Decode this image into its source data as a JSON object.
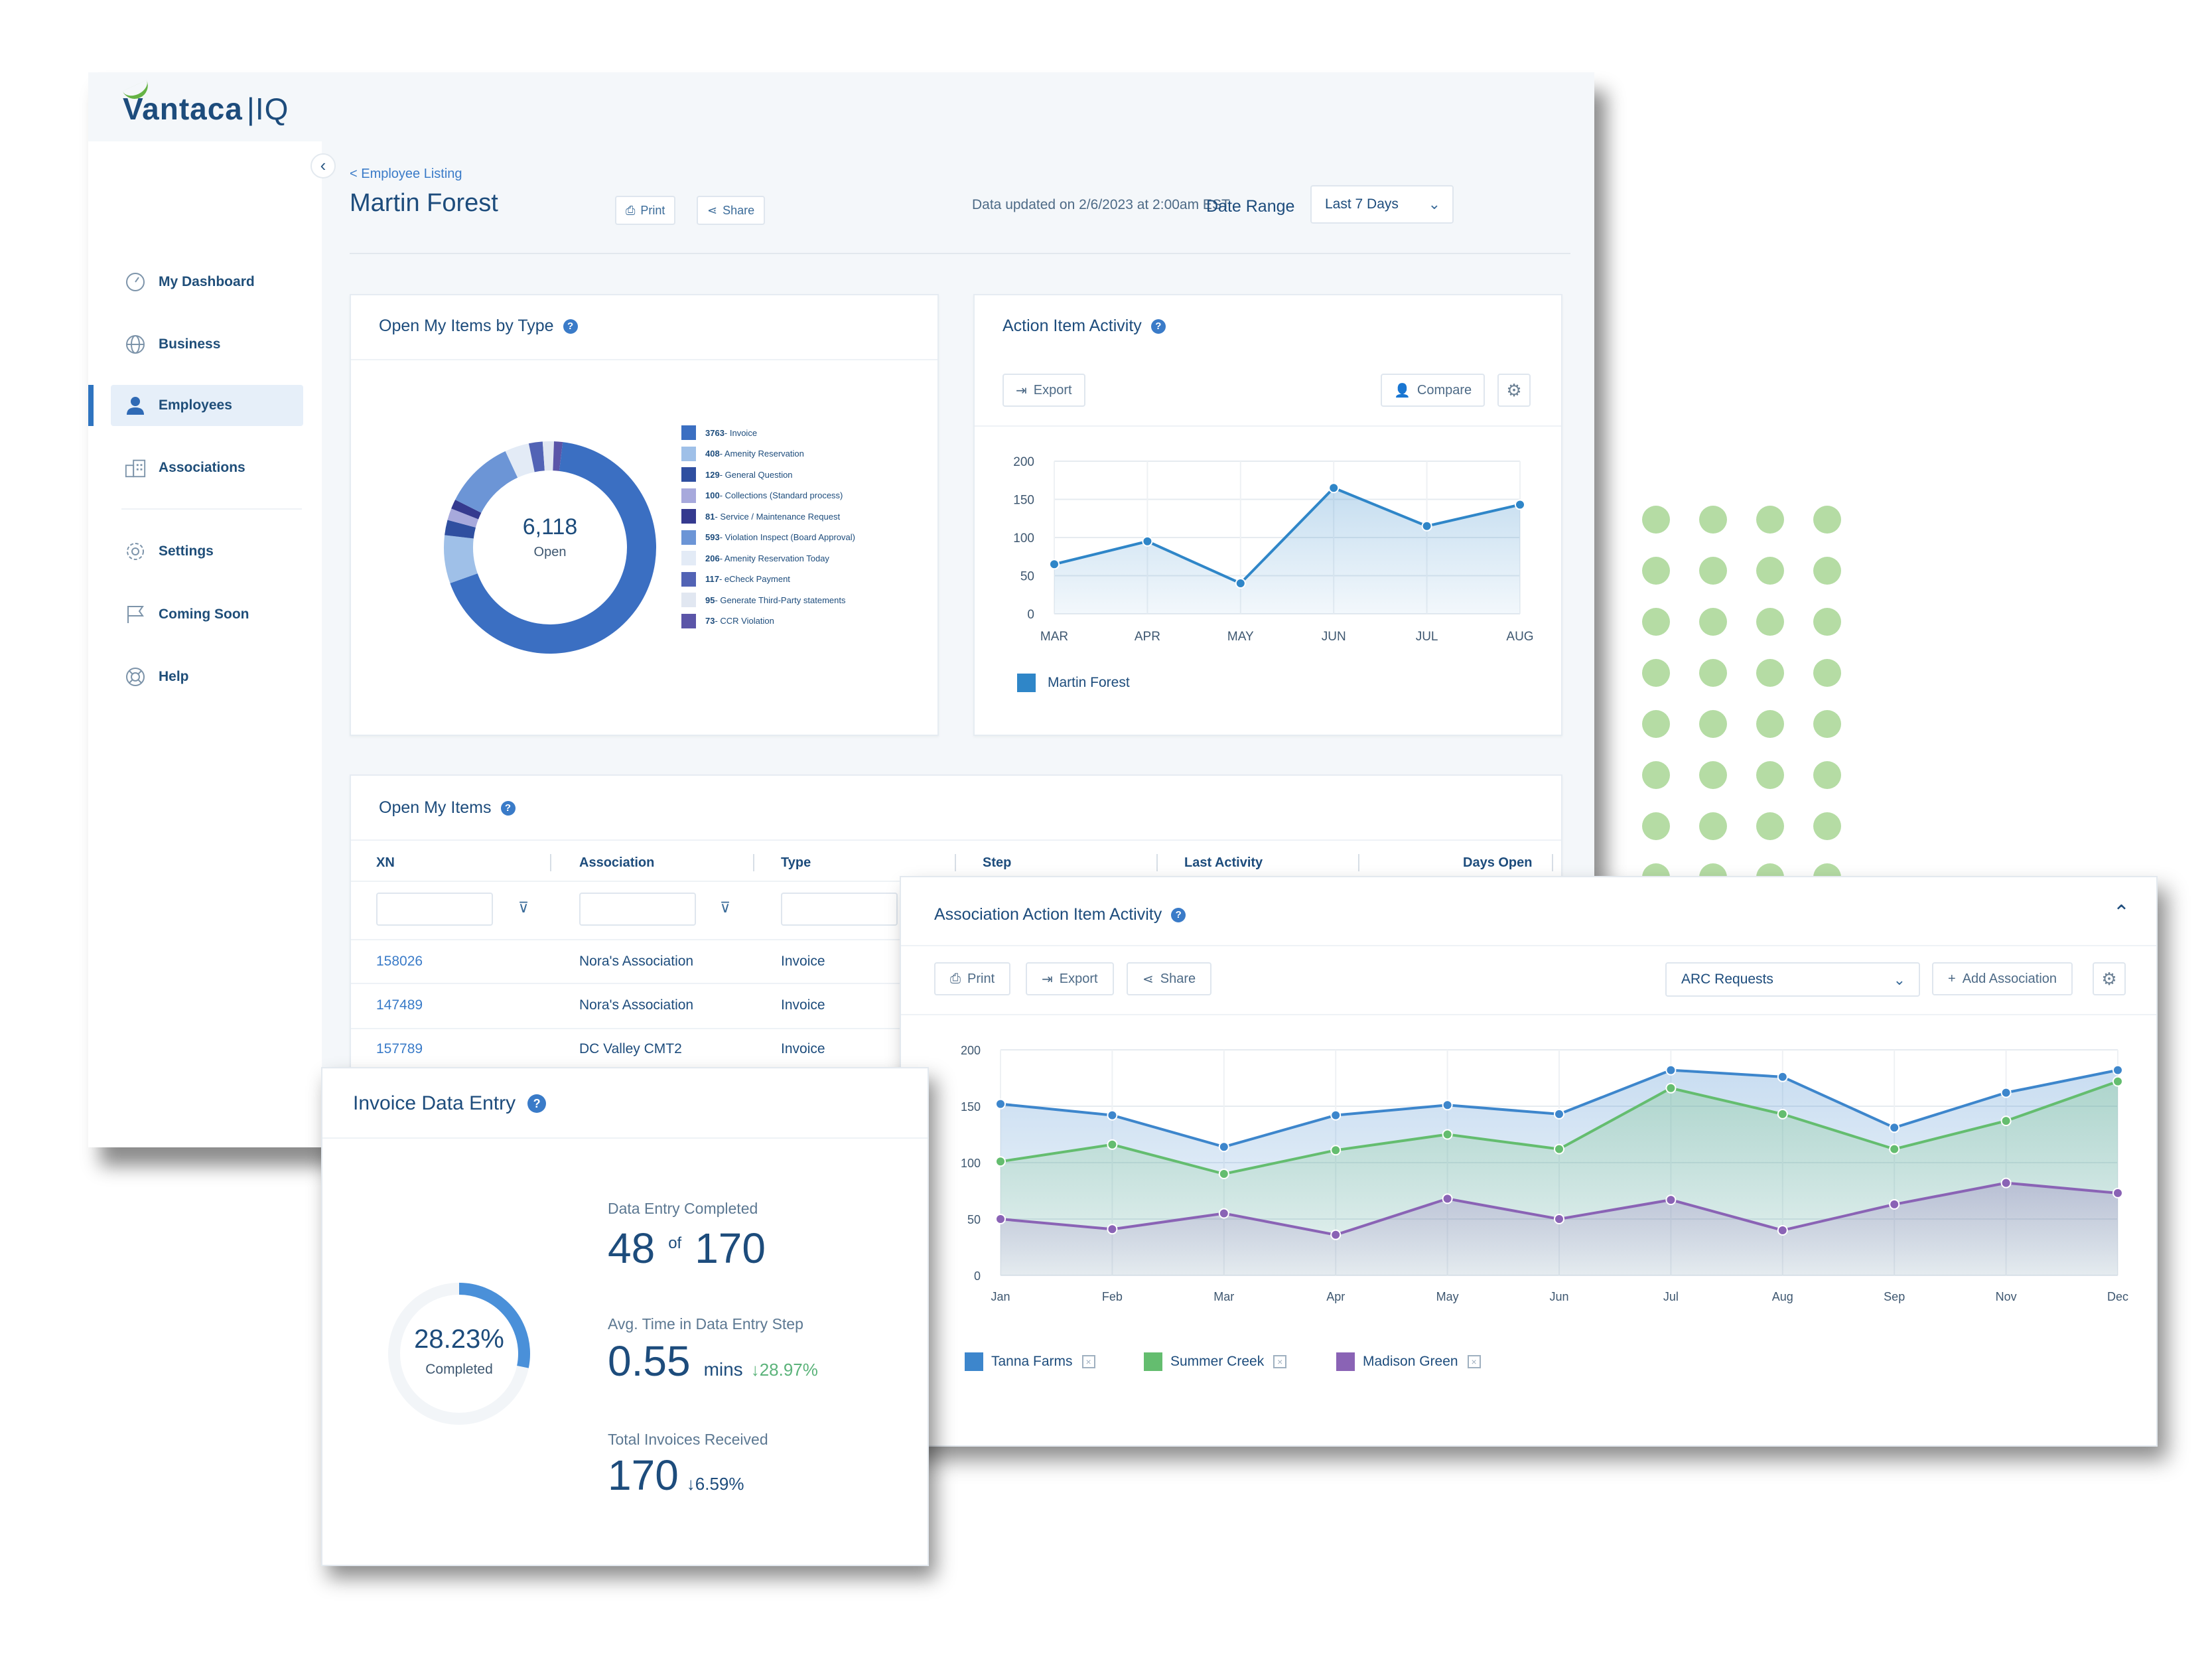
{
  "app": {
    "logo_text": "Vantaca",
    "logo_suffix": "IQ"
  },
  "sidebar": {
    "collapse_glyph": "‹",
    "items": [
      {
        "label": "My Dashboard",
        "icon": "dashboard-icon"
      },
      {
        "label": "Business",
        "icon": "globe-icon"
      },
      {
        "label": "Employees",
        "icon": "person-icon",
        "active": true
      },
      {
        "label": "Associations",
        "icon": "buildings-icon"
      },
      {
        "label": "Settings",
        "icon": "gear-icon"
      },
      {
        "label": "Coming Soon",
        "icon": "flag-icon"
      },
      {
        "label": "Help",
        "icon": "lifebuoy-icon"
      }
    ]
  },
  "header": {
    "breadcrumb": "< Employee Listing",
    "title": "Martin Forest",
    "print_label": "Print",
    "share_label": "Share",
    "data_updated": "Data updated on 2/6/2023 at 2:00am EST",
    "date_range_label": "Date Range",
    "date_range_value": "Last 7 Days"
  },
  "open_items_by_type": {
    "title": "Open My Items by Type",
    "center_value": "6,118",
    "center_label": "Open",
    "legend": [
      {
        "count": "3763",
        "label": "Invoice",
        "color": "#3b6fc2"
      },
      {
        "count": "408",
        "label": "Amenity Reservation",
        "color": "#9fc0e8"
      },
      {
        "count": "129",
        "label": "General Question",
        "color": "#2f4fa0"
      },
      {
        "count": "100",
        "label": "Collections (Standard process)",
        "color": "#a7a9dc"
      },
      {
        "count": "81",
        "label": "Service / Maintenance Request",
        "color": "#353a8f"
      },
      {
        "count": "593",
        "label": "Violation Inspect (Board Approval)",
        "color": "#6c95d6"
      },
      {
        "count": "206",
        "label": "Amenity Reservation Today",
        "color": "#e3ebf6"
      },
      {
        "count": "117",
        "label": "eCheck Payment",
        "color": "#5263b5"
      },
      {
        "count": "95",
        "label": "Generate Third-Party statements",
        "color": "#e1e7f1"
      },
      {
        "count": "73",
        "label": "CCR Violation",
        "color": "#5b55a8"
      }
    ]
  },
  "action_item_activity": {
    "title": "Action Item Activity",
    "export_label": "Export",
    "compare_label": "Compare",
    "legend_label": "Martin Forest"
  },
  "open_items_table": {
    "title": "Open My Items",
    "columns": [
      "XN",
      "Association",
      "Type",
      "Step",
      "Last Activity",
      "Days Open"
    ],
    "rows": [
      {
        "xn": "158026",
        "association": "Nora's Association",
        "type": "Invoice"
      },
      {
        "xn": "147489",
        "association": "Nora's Association",
        "type": "Invoice"
      },
      {
        "xn": "157789",
        "association": "DC Valley CMT2",
        "type": "Invoice"
      }
    ]
  },
  "association_activity": {
    "title": "Association Action Item Activity",
    "print_label": "Print",
    "export_label": "Export",
    "share_label": "Share",
    "select_value": "ARC Requests",
    "add_label": "Add Association",
    "remove_glyph": "×",
    "legend": [
      {
        "label": "Tanna Farms",
        "color": "#3d86cc"
      },
      {
        "label": "Summer Creek",
        "color": "#64bd6f"
      },
      {
        "label": "Madison Green",
        "color": "#8a63b5"
      }
    ]
  },
  "invoice_data_entry": {
    "title": "Invoice Data Entry",
    "percent_label": "28.23%",
    "percent_sub": "Completed",
    "completed_fraction": 0.2823,
    "completed_label": "Data Entry Completed",
    "completed_value": "48",
    "of_label": "of",
    "completed_total": "170",
    "avg_label": "Avg. Time in Data Entry Step",
    "avg_value": "0.55",
    "avg_unit": "mins",
    "avg_delta": "↓28.97%",
    "total_label": "Total Invoices Received",
    "total_value": "170",
    "total_delta": "↓6.59%"
  },
  "chart_data": [
    {
      "type": "pie",
      "title": "Open My Items by Type",
      "categories": [
        "Invoice",
        "Amenity Reservation",
        "General Question",
        "Collections (Standard process)",
        "Service / Maintenance Request",
        "Violation Inspect (Board Approval)",
        "Amenity Reservation Today",
        "eCheck Payment",
        "Generate Third-Party statements",
        "CCR Violation"
      ],
      "values": [
        3763,
        408,
        129,
        100,
        81,
        593,
        206,
        117,
        95,
        73
      ],
      "donut": true
    },
    {
      "type": "area",
      "title": "Action Item Activity",
      "categories": [
        "MAR",
        "APR",
        "MAY",
        "JUN",
        "JUL",
        "AUG"
      ],
      "y_ticks": [
        "0",
        "50",
        "100",
        "150",
        "200"
      ],
      "ylim": [
        0,
        200
      ],
      "series": [
        {
          "name": "Martin Forest",
          "color": "#2f86c8",
          "values": [
            65,
            95,
            40,
            165,
            115,
            143
          ]
        }
      ]
    },
    {
      "type": "area",
      "title": "Association Action Item Activity",
      "categories": [
        "Jan",
        "Feb",
        "Mar",
        "Apr",
        "May",
        "Jun",
        "Jul",
        "Aug",
        "Sep",
        "Nov",
        "Dec"
      ],
      "y_ticks": [
        "0",
        "50",
        "100",
        "150",
        "200"
      ],
      "ylim": [
        0,
        200
      ],
      "series": [
        {
          "name": "Tanna Farms",
          "color": "#3d86cc",
          "values": [
            152,
            142,
            114,
            142,
            151,
            143,
            182,
            176,
            131,
            162,
            182
          ]
        },
        {
          "name": "Summer Creek",
          "color": "#64bd6f",
          "values": [
            101,
            116,
            90,
            111,
            125,
            112,
            166,
            143,
            112,
            137,
            172
          ]
        },
        {
          "name": "Madison Green",
          "color": "#8a63b5",
          "values": [
            50,
            41,
            55,
            36,
            68,
            50,
            67,
            40,
            63,
            82,
            73
          ]
        }
      ]
    }
  ]
}
